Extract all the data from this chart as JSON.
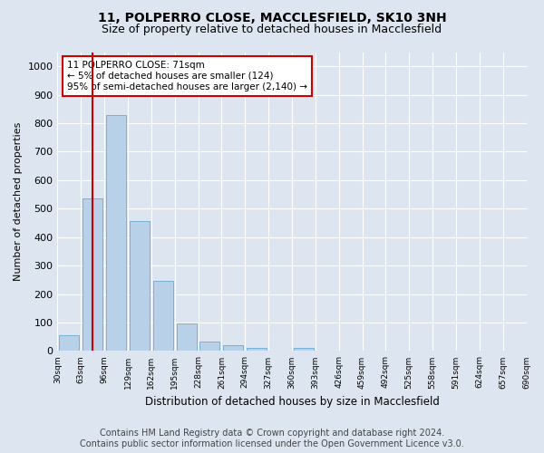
{
  "title": "11, POLPERRO CLOSE, MACCLESFIELD, SK10 3NH",
  "subtitle": "Size of property relative to detached houses in Macclesfield",
  "xlabel": "Distribution of detached houses by size in Macclesfield",
  "ylabel": "Number of detached properties",
  "bar_values": [
    55,
    535,
    830,
    455,
    245,
    97,
    33,
    20,
    10,
    0,
    10,
    0,
    0,
    0,
    0,
    0,
    0,
    0,
    0,
    0
  ],
  "bar_labels": [
    "30sqm",
    "63sqm",
    "96sqm",
    "129sqm",
    "162sqm",
    "195sqm",
    "228sqm",
    "261sqm",
    "294sqm",
    "327sqm",
    "360sqm",
    "393sqm",
    "426sqm",
    "459sqm",
    "492sqm",
    "525sqm",
    "558sqm",
    "591sqm",
    "624sqm",
    "657sqm",
    "690sqm"
  ],
  "bar_color": "#b8d0e8",
  "bar_edge_color": "#6aaad4",
  "vline_x": 1,
  "vline_color": "#cc0000",
  "annotation_text": "11 POLPERRO CLOSE: 71sqm\n← 5% of detached houses are smaller (124)\n95% of semi-detached houses are larger (2,140) →",
  "annotation_box_color": "#ffffff",
  "annotation_box_edge": "#cc0000",
  "ylim": [
    0,
    1050
  ],
  "yticks": [
    0,
    100,
    200,
    300,
    400,
    500,
    600,
    700,
    800,
    900,
    1000
  ],
  "footer_line1": "Contains HM Land Registry data © Crown copyright and database right 2024.",
  "footer_line2": "Contains public sector information licensed under the Open Government Licence v3.0.",
  "background_color": "#dde6f0",
  "plot_bg_color": "#dde6f0",
  "grid_color": "#ffffff",
  "title_fontsize": 10,
  "subtitle_fontsize": 9,
  "footer_fontsize": 7
}
